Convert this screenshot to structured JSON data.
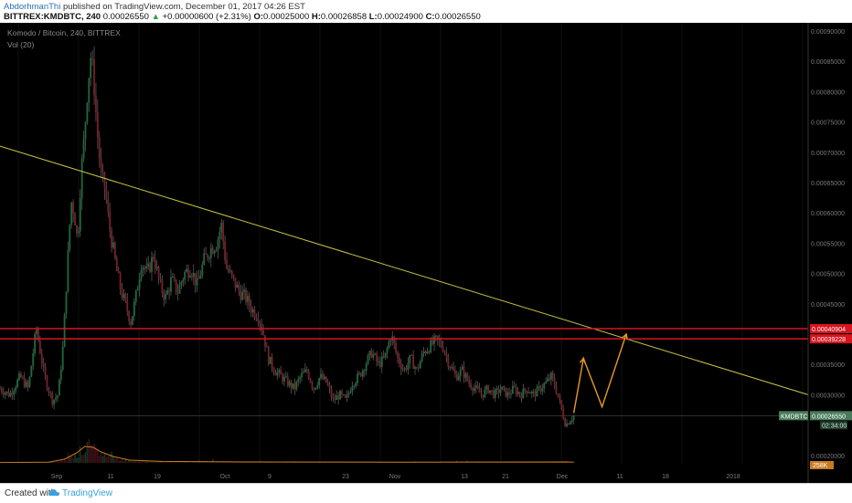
{
  "header": {
    "author": "AbdorhmanThi",
    "published_text": "published on TradingView.com, December 01, 2017 04:26 EST",
    "symbol": "BITTREX:KMDBTC, 240",
    "last": "0.00026550",
    "change": "+0.00000600 (+2.31%)",
    "open_label": "O:",
    "open": "0.00025000",
    "high_label": "H:",
    "high": "0.00026858",
    "low_label": "L:",
    "low": "0.00024900",
    "close_label": "C:",
    "close": "0.00026550"
  },
  "chart_data": {
    "type": "candlestick",
    "title": "Komodo / Bitcoin, 240, BITTREX",
    "volume_label": "Vol (20)",
    "x_tick_labels": [
      "Sep",
      "11",
      "19",
      "Oct",
      "9",
      "23",
      "Nov",
      "13",
      "21",
      "Dec",
      "11",
      "18",
      "2018"
    ],
    "y_tick_labels": [
      "0.00090000",
      "0.00085000",
      "0.00080000",
      "0.00075000",
      "0.00070000",
      "0.00065000",
      "0.00060000",
      "0.00055000",
      "0.00050000",
      "0.00045000",
      "0.00035000",
      "0.00030000",
      "0.00020000"
    ],
    "ylim": [
      0.0001,
      0.0009
    ],
    "price_path": [
      [
        0,
        0.00031
      ],
      [
        0.012,
        0.0003
      ],
      [
        0.025,
        0.00033
      ],
      [
        0.035,
        0.00031
      ],
      [
        0.045,
        0.00041
      ],
      [
        0.055,
        0.00033
      ],
      [
        0.065,
        0.00029
      ],
      [
        0.072,
        0.0003
      ],
      [
        0.078,
        0.00038
      ],
      [
        0.082,
        0.00048
      ],
      [
        0.088,
        0.00062
      ],
      [
        0.092,
        0.0006
      ],
      [
        0.096,
        0.00055
      ],
      [
        0.1,
        0.00066
      ],
      [
        0.104,
        0.00072
      ],
      [
        0.108,
        0.0008
      ],
      [
        0.112,
        0.00086
      ],
      [
        0.116,
        0.00082
      ],
      [
        0.12,
        0.00074
      ],
      [
        0.125,
        0.00066
      ],
      [
        0.13,
        0.00064
      ],
      [
        0.135,
        0.00058
      ],
      [
        0.14,
        0.00054
      ],
      [
        0.145,
        0.0005
      ],
      [
        0.15,
        0.00047
      ],
      [
        0.155,
        0.00045
      ],
      [
        0.162,
        0.00042
      ],
      [
        0.168,
        0.00046
      ],
      [
        0.175,
        0.00052
      ],
      [
        0.182,
        0.0005
      ],
      [
        0.19,
        0.00053
      ],
      [
        0.198,
        0.00048
      ],
      [
        0.205,
        0.00046
      ],
      [
        0.212,
        0.00049
      ],
      [
        0.22,
        0.00047
      ],
      [
        0.228,
        0.0005
      ],
      [
        0.236,
        0.00051
      ],
      [
        0.244,
        0.00048
      ],
      [
        0.252,
        0.00052
      ],
      [
        0.26,
        0.00054
      ],
      [
        0.268,
        0.00055
      ],
      [
        0.274,
        0.00058
      ],
      [
        0.28,
        0.00051
      ],
      [
        0.288,
        0.00049
      ],
      [
        0.296,
        0.00047
      ],
      [
        0.304,
        0.00046
      ],
      [
        0.312,
        0.00044
      ],
      [
        0.32,
        0.00043
      ],
      [
        0.326,
        0.0004
      ],
      [
        0.332,
        0.00036
      ],
      [
        0.34,
        0.00034
      ],
      [
        0.348,
        0.00033
      ],
      [
        0.356,
        0.00032
      ],
      [
        0.364,
        0.00031
      ],
      [
        0.372,
        0.00033
      ],
      [
        0.38,
        0.00034
      ],
      [
        0.388,
        0.00031
      ],
      [
        0.396,
        0.00033
      ],
      [
        0.404,
        0.00032
      ],
      [
        0.412,
        0.00029
      ],
      [
        0.42,
        0.0003
      ],
      [
        0.428,
        0.00029
      ],
      [
        0.436,
        0.00032
      ],
      [
        0.444,
        0.00033
      ],
      [
        0.452,
        0.00035
      ],
      [
        0.46,
        0.00037
      ],
      [
        0.468,
        0.00035
      ],
      [
        0.476,
        0.00036
      ],
      [
        0.484,
        0.0004
      ],
      [
        0.492,
        0.00036
      ],
      [
        0.5,
        0.00034
      ],
      [
        0.508,
        0.00036
      ],
      [
        0.516,
        0.00034
      ],
      [
        0.524,
        0.00037
      ],
      [
        0.532,
        0.00038
      ],
      [
        0.54,
        0.00039
      ],
      [
        0.548,
        0.00038
      ],
      [
        0.556,
        0.00035
      ],
      [
        0.564,
        0.00033
      ],
      [
        0.572,
        0.00034
      ],
      [
        0.58,
        0.00032
      ],
      [
        0.588,
        0.00031
      ],
      [
        0.596,
        0.0003
      ],
      [
        0.604,
        0.00031
      ],
      [
        0.612,
        0.0003
      ],
      [
        0.62,
        0.00031
      ],
      [
        0.628,
        0.0003
      ],
      [
        0.636,
        0.00031
      ],
      [
        0.644,
        0.0003
      ],
      [
        0.652,
        0.00031
      ],
      [
        0.66,
        0.0003
      ],
      [
        0.668,
        0.00031
      ],
      [
        0.676,
        0.00032
      ],
      [
        0.682,
        0.00033
      ],
      [
        0.688,
        0.00031
      ],
      [
        0.694,
        0.00028
      ],
      [
        0.7,
        0.00025
      ],
      [
        0.706,
        0.00026
      ],
      [
        0.71,
        0.0002655
      ]
    ],
    "volume_path": [
      [
        0,
        0.02
      ],
      [
        0.06,
        0.04
      ],
      [
        0.08,
        0.2
      ],
      [
        0.095,
        0.55
      ],
      [
        0.105,
        0.9
      ],
      [
        0.115,
        0.85
      ],
      [
        0.125,
        0.6
      ],
      [
        0.14,
        0.35
      ],
      [
        0.16,
        0.15
      ],
      [
        0.2,
        0.08
      ],
      [
        0.3,
        0.05
      ],
      [
        0.5,
        0.04
      ],
      [
        0.7,
        0.05
      ],
      [
        0.71,
        0.04
      ]
    ],
    "trendline": {
      "x": [
        0.0,
        1.0
      ],
      "y": [
        0.00071,
        0.0003
      ]
    },
    "resistance_levels": [
      {
        "value": 0.00040904,
        "label": "0.00040904"
      },
      {
        "value": 0.00039228,
        "label": "0.00039228"
      }
    ],
    "projection_path": [
      [
        0.71,
        0.00027
      ],
      [
        0.722,
        0.00036
      ],
      [
        0.745,
        0.00028
      ],
      [
        0.775,
        0.0004
      ]
    ],
    "current_price_label": "0.00026550",
    "symbol_tag": "KMDBTC",
    "countdown": "02:34:00",
    "volume_tag": "258K",
    "colors": {
      "background": "#000000",
      "up": "#1e6b3c",
      "down": "#7a1f2a",
      "wick": "#5a5a5a",
      "trendline": "#c9c444",
      "resistance": "#d8141e",
      "projection": "#e89a20",
      "volume_line": "#c87a1e",
      "current": "#4a7a5a"
    }
  },
  "footer": {
    "created": "Created with",
    "brand": "TradingView"
  }
}
